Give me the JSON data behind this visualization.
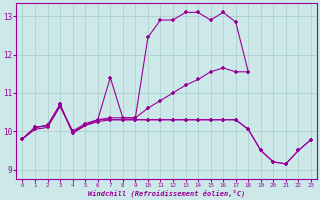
{
  "background_color": "#cce8e8",
  "grid_color": "#aacccc",
  "line_color": "#990099",
  "marker": "+",
  "markersize": 3,
  "linewidth": 0.8,
  "xlabel": "Windchill (Refroidissement éolien,°C)",
  "xlim": [
    -0.5,
    23.5
  ],
  "ylim": [
    8.75,
    13.35
  ],
  "xticks": [
    0,
    1,
    2,
    3,
    4,
    5,
    6,
    7,
    8,
    9,
    10,
    11,
    12,
    13,
    14,
    15,
    16,
    17,
    18,
    19,
    20,
    21,
    22,
    23
  ],
  "yticks": [
    9,
    10,
    11,
    12,
    13
  ],
  "s1_x": [
    0,
    1,
    2,
    3,
    4,
    5,
    6,
    7,
    8,
    9,
    10,
    11,
    12,
    13,
    14,
    15,
    16,
    17,
    18
  ],
  "s1_y": [
    9.8,
    10.1,
    10.15,
    10.7,
    9.95,
    10.15,
    10.3,
    11.4,
    10.35,
    10.35,
    12.45,
    12.9,
    12.9,
    13.1,
    13.1,
    12.9,
    13.1,
    12.85,
    11.55
  ],
  "s2_x": [
    0,
    1,
    2,
    3,
    4,
    5,
    6,
    7,
    8,
    9,
    10,
    11,
    12,
    13,
    14,
    15,
    16,
    17,
    18
  ],
  "s2_y": [
    9.8,
    10.1,
    10.15,
    10.7,
    9.95,
    10.15,
    10.3,
    10.35,
    10.35,
    10.35,
    10.6,
    10.8,
    11.0,
    11.2,
    11.35,
    11.55,
    11.65,
    11.55,
    11.55
  ],
  "s3_x": [
    0,
    1,
    2,
    3,
    4,
    5,
    6,
    7,
    8,
    9,
    10,
    11,
    12,
    13,
    14,
    15,
    16,
    17,
    18,
    19,
    20,
    21,
    22,
    23
  ],
  "s3_y": [
    9.8,
    10.1,
    10.15,
    10.65,
    10.0,
    10.2,
    10.3,
    10.3,
    10.3,
    10.3,
    10.3,
    10.3,
    10.3,
    10.3,
    10.3,
    10.3,
    10.3,
    10.3,
    10.05,
    9.5,
    9.2,
    9.15,
    9.5,
    9.78
  ],
  "s4_x": [
    0,
    1,
    2,
    3,
    4,
    5,
    6,
    7,
    8,
    9,
    10,
    11,
    12,
    13,
    14,
    15,
    16,
    17,
    18,
    19,
    20,
    21,
    22,
    23
  ],
  "s4_y": [
    9.8,
    10.05,
    10.1,
    10.65,
    10.0,
    10.15,
    10.25,
    10.3,
    10.3,
    10.3,
    10.3,
    10.3,
    10.3,
    10.3,
    10.3,
    10.3,
    10.3,
    10.3,
    10.05,
    9.5,
    9.2,
    9.15,
    9.5,
    9.78
  ]
}
